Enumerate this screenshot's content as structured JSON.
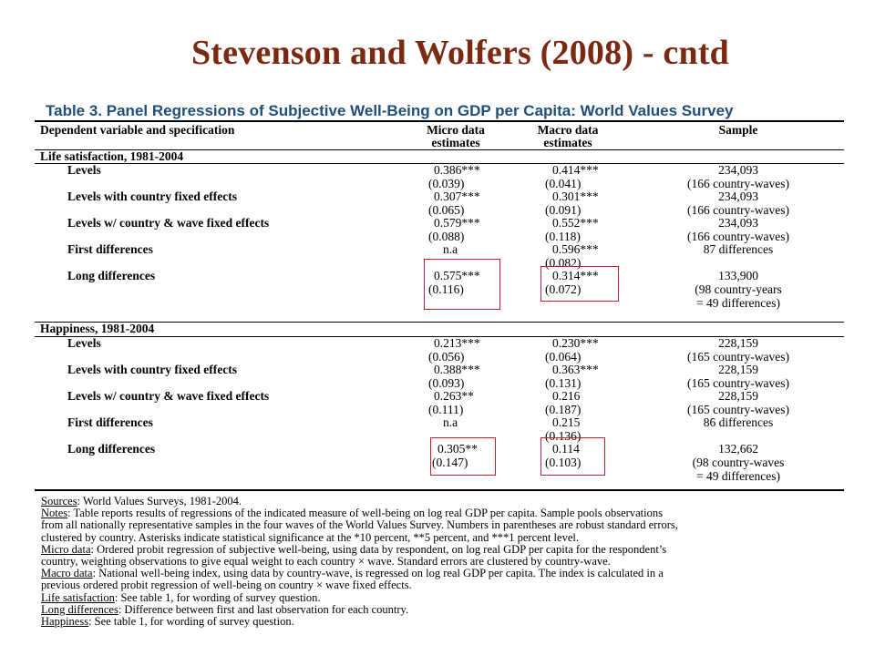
{
  "slide": {
    "title": "Stevenson and Wolfers (2008) - cntd"
  },
  "table": {
    "caption": "Table 3. Panel Regressions of Subjective Well-Being on GDP per Capita: World Values Survey",
    "headers": {
      "spec": "Dependent variable and specification",
      "micro_1": "Micro data",
      "micro_2": "estimates",
      "macro_1": "Macro data",
      "macro_2": "estimates",
      "sample": "Sample"
    },
    "sections": [
      {
        "title": "Life satisfaction, 1981-2004",
        "rows": [
          {
            "label": "Levels",
            "micro": "0.386***",
            "micro_se": "(0.039)",
            "macro": "0.414***",
            "macro_se": "(0.041)",
            "sample": "234,093",
            "sample2": "(166 country-waves)",
            "sample3": ""
          },
          {
            "label": "Levels with country fixed effects",
            "micro": "0.307***",
            "micro_se": "(0.065)",
            "macro": "0.301***",
            "macro_se": "(0.091)",
            "sample": "234,093",
            "sample2": "(166 country-waves)",
            "sample3": ""
          },
          {
            "label": "Levels w/ country & wave fixed effects",
            "micro": "0.579***",
            "micro_se": "(0.088)",
            "macro": "0.552***",
            "macro_se": "(0.118)",
            "sample": "234,093",
            "sample2": "(166 country-waves)",
            "sample3": ""
          },
          {
            "label": "First differences",
            "micro": "n.a",
            "micro_se": "",
            "macro": "0.596***",
            "macro_se": "(0.082)",
            "sample": "87 differences",
            "sample2": "",
            "sample3": ""
          },
          {
            "label": "Long differences",
            "micro": "0.575***",
            "micro_se": "(0.116)",
            "macro": "0.314***",
            "macro_se": "(0.072)",
            "sample": "133,900",
            "sample2": "(98 country-years",
            "sample3": "= 49 differences)"
          }
        ]
      },
      {
        "title": "Happiness, 1981-2004",
        "rows": [
          {
            "label": "Levels",
            "micro": "0.213***",
            "micro_se": "(0.056)",
            "macro": "0.230***",
            "macro_se": "(0.064)",
            "sample": "228,159",
            "sample2": "(165 country-waves)",
            "sample3": ""
          },
          {
            "label": "Levels with country fixed effects",
            "micro": "0.388***",
            "micro_se": "(0.093)",
            "macro": "0.363***",
            "macro_se": "(0.131)",
            "sample": "228,159",
            "sample2": "(165 country-waves)",
            "sample3": ""
          },
          {
            "label": "Levels w/ country & wave fixed effects",
            "micro": "0.263**",
            "micro_se": "(0.111)",
            "macro": "0.216",
            "macro_se": "(0.187)",
            "sample": "228,159",
            "sample2": "(165 country-waves)",
            "sample3": ""
          },
          {
            "label": "First differences",
            "micro": "n.a",
            "micro_se": "",
            "macro": "0.215",
            "macro_se": "(0.136)",
            "sample": "86 differences",
            "sample2": "",
            "sample3": ""
          },
          {
            "label": "Long differences",
            "micro": "0.305**",
            "micro_se": "(0.147)",
            "macro": "0.114",
            "macro_se": "(0.103)",
            "sample": "132,662",
            "sample2": "(98 country-waves",
            "sample3": "= 49 differences)"
          }
        ]
      }
    ]
  },
  "notes": {
    "sources_label": "Sources",
    "sources_text": ": World Values Surveys, 1981-2004.",
    "notes_label": "Notes",
    "notes_text_1": ": Table reports results of regressions of the indicated measure of well-being on log real GDP per capita. Sample pools observations",
    "notes_text_2": "from all nationally representative samples in the four waves of the World Values Survey. Numbers in parentheses are robust standard errors,",
    "notes_text_3": "clustered by country. Asterisks indicate statistical significance at the *10 percent, **5 percent, and ***1 percent level.",
    "micro_label": "Micro data",
    "micro_text_1": ": Ordered probit regression of subjective well-being, using data by respondent, on log real GDP per capita for the respondent’s",
    "micro_text_2": "country, weighting observations to give equal weight to each country × wave. Standard errors are clustered by country-wave.",
    "macro_label": "Macro data",
    "macro_text_1": ": National well-being index, using data by country-wave, is regressed on log real GDP per capita. The index is calculated in a",
    "macro_text_2": "previous ordered probit regression of well-being on country × wave fixed effects.",
    "life_label": "Life satisfaction",
    "life_text": ": See table 1, for wording of survey question.",
    "long_label": "Long differences",
    "long_text": ": Difference between first and last observation for each country.",
    "happy_label": "Happiness",
    "happy_text": ": See table 1, for wording of survey question."
  },
  "colors": {
    "title": "#7a2a12",
    "caption": "#1f4e79",
    "highlight": "#c0202a"
  }
}
